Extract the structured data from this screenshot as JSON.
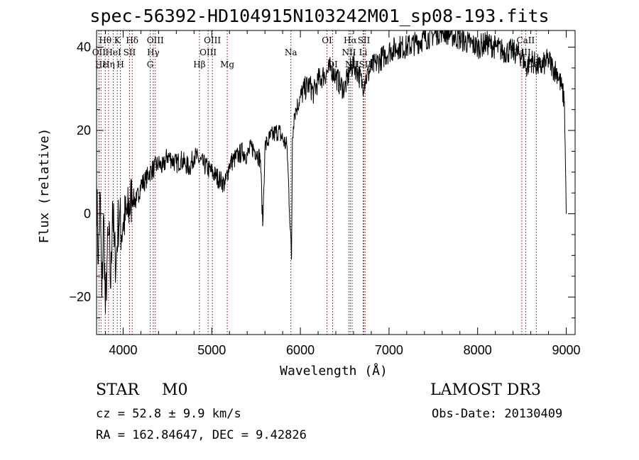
{
  "title": "spec-56392-HD104915N103242M01_sp08-193.fits",
  "info": {
    "class_label": "STAR",
    "subclass": "M0",
    "survey": "LAMOST DR3",
    "redshift_text": "cz = 52.8 ± 9.9 km/s",
    "obs_date_text": "Obs-Date: 20130409",
    "coords_text": "RA = 162.84647, DEC =   9.42826"
  },
  "chart_data": {
    "type": "line",
    "title": "spec-56392-HD104915N103242M01_sp08-193.fits",
    "xlabel": "Wavelength (Å)",
    "ylabel": "Flux (relative)",
    "xlim": [
      3700,
      9100
    ],
    "ylim": [
      -29,
      44
    ],
    "xticks": [
      4000,
      5000,
      6000,
      7000,
      8000,
      9000
    ],
    "yticks": [
      -20,
      0,
      20,
      40
    ],
    "xminor_step": 200,
    "yminor_step": 5,
    "series": [
      {
        "name": "flux",
        "x": [
          3700,
          3720,
          3740,
          3760,
          3780,
          3800,
          3820,
          3840,
          3860,
          3880,
          3900,
          3920,
          3940,
          3960,
          3980,
          4000,
          4050,
          4100,
          4150,
          4200,
          4250,
          4300,
          4350,
          4400,
          4450,
          4500,
          4550,
          4600,
          4650,
          4700,
          4750,
          4800,
          4850,
          4900,
          4950,
          5000,
          5050,
          5100,
          5150,
          5200,
          5250,
          5300,
          5350,
          5400,
          5450,
          5500,
          5550,
          5575,
          5600,
          5625,
          5650,
          5700,
          5750,
          5800,
          5850,
          5900,
          5910,
          5920,
          5930,
          5950,
          6000,
          6050,
          6100,
          6150,
          6200,
          6250,
          6300,
          6350,
          6400,
          6450,
          6500,
          6550,
          6600,
          6650,
          6700,
          6750,
          6800,
          6850,
          6900,
          6950,
          7000,
          7100,
          7200,
          7300,
          7400,
          7500,
          7600,
          7700,
          7800,
          7900,
          8000,
          8100,
          8200,
          8300,
          8400,
          8500,
          8550,
          8600,
          8650,
          8700,
          8750,
          8800,
          8850,
          8900,
          8950,
          8980,
          9000
        ],
        "values": [
          8,
          -12,
          5,
          -20,
          0,
          -24,
          -10,
          -5,
          -18,
          3,
          -8,
          -12,
          -3,
          0,
          -5,
          -2,
          0,
          4,
          3,
          7,
          8,
          10,
          11,
          12,
          11,
          14,
          13,
          12,
          13,
          12,
          11,
          14,
          13,
          12,
          11,
          10,
          9,
          8,
          7,
          12,
          13,
          14,
          15,
          14,
          16,
          15,
          13,
          -3,
          16,
          17,
          18,
          19,
          20,
          18,
          16,
          -11,
          18,
          21,
          24,
          25,
          28,
          30,
          31,
          29,
          32,
          33,
          34,
          35,
          33,
          31,
          30,
          34,
          36,
          34,
          31,
          33,
          35,
          36,
          37,
          38,
          39,
          40,
          40,
          41,
          42,
          43,
          44,
          43,
          42,
          41,
          40,
          41,
          40,
          39,
          39,
          38,
          35,
          37,
          36,
          35,
          36,
          37,
          35,
          34,
          30,
          27,
          0
        ]
      }
    ],
    "line_markers": [
      {
        "label": "Hθ",
        "wavelength": 3798,
        "pos": "top"
      },
      {
        "label": "K",
        "wavelength": 3934,
        "pos": "top"
      },
      {
        "label": "Hδ",
        "wavelength": 4102,
        "pos": "top"
      },
      {
        "label": "OIII",
        "wavelength": 4363,
        "pos": "top"
      },
      {
        "label": "OIII",
        "wavelength": 5007,
        "pos": "top"
      },
      {
        "label": "OI",
        "wavelength": 6300,
        "pos": "top"
      },
      {
        "label": "Hα",
        "wavelength": 6563,
        "pos": "top"
      },
      {
        "label": "SII",
        "wavelength": 6717,
        "pos": "top"
      },
      {
        "label": "CaII",
        "wavelength": 8542,
        "pos": "top"
      },
      {
        "label": "OII",
        "wavelength": 3727,
        "pos": "mid"
      },
      {
        "label": "HeI",
        "wavelength": 3889,
        "pos": "mid"
      },
      {
        "label": "SII",
        "wavelength": 4072,
        "pos": "mid"
      },
      {
        "label": "Hγ",
        "wavelength": 4340,
        "pos": "mid"
      },
      {
        "label": "OIII",
        "wavelength": 4959,
        "pos": "mid"
      },
      {
        "label": "Na",
        "wavelength": 5893,
        "pos": "mid"
      },
      {
        "label": "NII",
        "wavelength": 6548,
        "pos": "mid"
      },
      {
        "label": "Li",
        "wavelength": 6708,
        "pos": "mid"
      },
      {
        "label": "CaII",
        "wavelength": 8498,
        "pos": "mid"
      },
      {
        "label": "Hε",
        "wavelength": 3750,
        "pos": "low"
      },
      {
        "label": "Hη",
        "wavelength": 3835,
        "pos": "low"
      },
      {
        "label": "H",
        "wavelength": 3969,
        "pos": "low"
      },
      {
        "label": "G",
        "wavelength": 4305,
        "pos": "low"
      },
      {
        "label": "Hβ",
        "wavelength": 4861,
        "pos": "low"
      },
      {
        "label": "Mg",
        "wavelength": 5175,
        "pos": "low"
      },
      {
        "label": "OI",
        "wavelength": 6364,
        "pos": "low"
      },
      {
        "label": "NII",
        "wavelength": 6584,
        "pos": "low"
      },
      {
        "label": "SII",
        "wavelength": 6731,
        "pos": "low"
      },
      {
        "label": "CaII",
        "wavelength": 8662,
        "pos": "low"
      }
    ],
    "colors": {
      "line": "#000000",
      "markers": "#8b0000",
      "axes": "#000000",
      "background": "#ffffff"
    }
  }
}
